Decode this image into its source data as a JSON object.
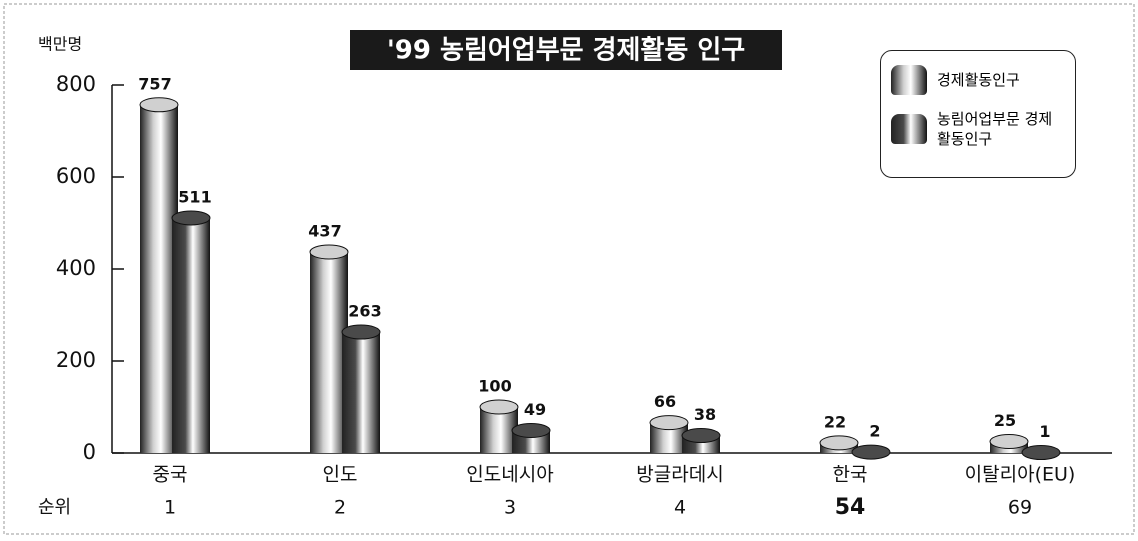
{
  "chart_data": {
    "type": "bar",
    "title": "'99 농림어업부문 경제활동 인구",
    "y_unit": "백만명",
    "categories": [
      "중국",
      "인도",
      "인도네시아",
      "방글라데시",
      "한국",
      "이탈리아(EU)"
    ],
    "series": [
      {
        "name": "경제활동인구",
        "color": "#d0d0d0",
        "values": [
          757,
          437,
          100,
          66,
          22,
          25
        ]
      },
      {
        "name": "농림어업부문 경제활동인구",
        "color": "#4a4a4a",
        "values": [
          511,
          263,
          49,
          38,
          2,
          1
        ]
      }
    ],
    "rank_label": "순위",
    "ranks": [
      1,
      2,
      3,
      4,
      54,
      69
    ],
    "bold_rank": 4,
    "ylim": [
      0,
      800
    ],
    "yticks": [
      0,
      200,
      400,
      600,
      800
    ]
  }
}
